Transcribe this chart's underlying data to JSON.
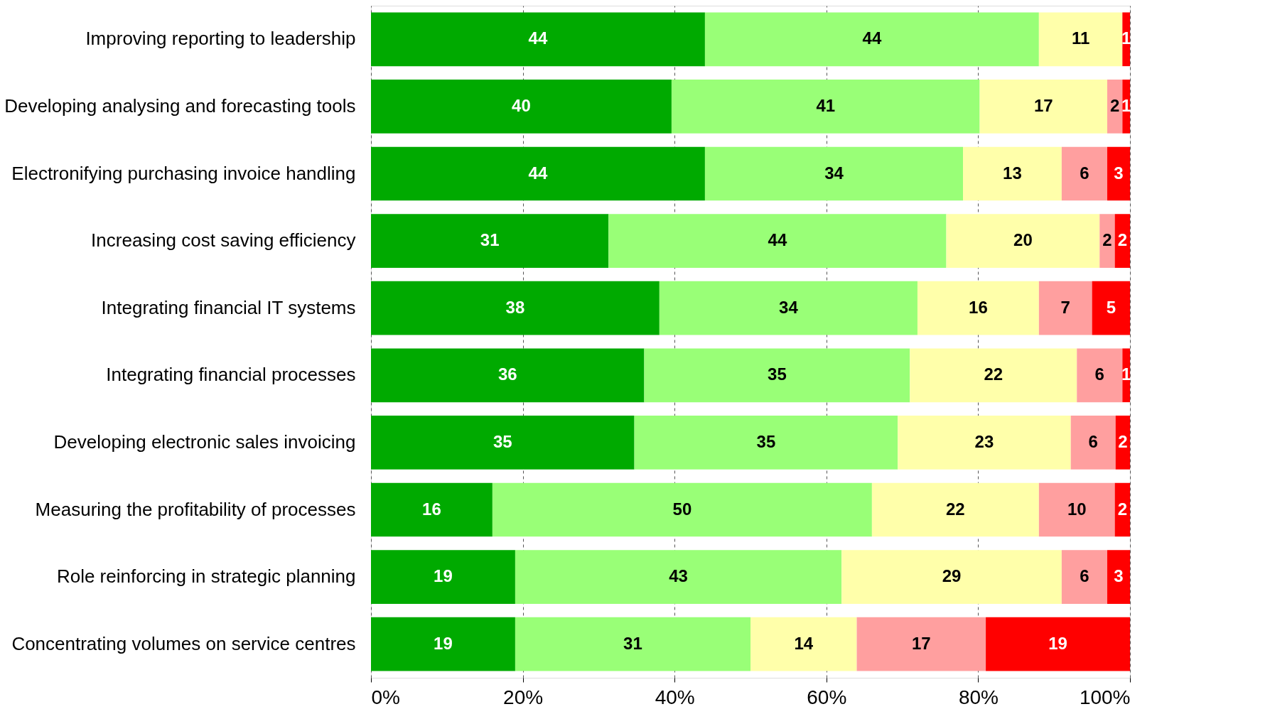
{
  "chart_data": {
    "type": "bar",
    "orientation": "horizontal",
    "stacked": true,
    "categories": [
      "Improving reporting to leadership",
      "Developing analysing and forecasting tools",
      "Electronifying  purchasing invoice handling",
      "Increasing cost saving efficiency",
      "Integrating  financial IT systems",
      "Integrating financial processes",
      "Developing electronic sales invoicing",
      "Measuring the profitability of processes",
      "Role reinforcing in strategic planning",
      "Concentrating volumes on service centres"
    ],
    "series": [
      {
        "color": "#00aa00",
        "values": [
          44,
          39.6,
          44,
          31.3,
          38,
          36,
          34.7,
          16,
          19,
          19
        ],
        "value_labels": [
          "44",
          "40",
          "44",
          "31",
          "38",
          "36",
          "35",
          "16",
          "19",
          "19"
        ]
      },
      {
        "color": "#99ff77",
        "values": [
          44,
          40.6,
          34,
          44.5,
          34,
          35,
          34.7,
          50,
          43,
          31
        ],
        "value_labels": [
          "44",
          "41",
          "34",
          "44",
          "34",
          "35",
          "35",
          "50",
          "43",
          "31"
        ]
      },
      {
        "color": "#ffffaa",
        "values": [
          11,
          16.8,
          13,
          20.2,
          16,
          22,
          22.8,
          22,
          29,
          14
        ],
        "value_labels": [
          "11",
          "17",
          "13",
          "20",
          "16",
          "22",
          "23",
          "22",
          "29",
          "14"
        ]
      },
      {
        "color": "#ff9f9f",
        "values": [
          null,
          2,
          6,
          2,
          7,
          6,
          5.9,
          10,
          6,
          17
        ],
        "value_labels": [
          null,
          "2",
          "6",
          "2",
          "7",
          "6",
          "6",
          "10",
          "6",
          "17"
        ]
      },
      {
        "color": "#ff0000",
        "values": [
          1,
          1,
          3,
          2,
          5,
          1,
          1.9,
          2,
          3,
          19
        ],
        "value_labels": [
          "1",
          "1",
          "3",
          "2",
          "5",
          "1",
          "2",
          "2",
          "3",
          "19"
        ]
      }
    ],
    "xlim": [
      0,
      100
    ],
    "xticks": [
      {
        "value": 0,
        "label": "0%"
      },
      {
        "value": 20,
        "label": "20%"
      },
      {
        "value": 40,
        "label": "40%"
      },
      {
        "value": 60,
        "label": "60%"
      },
      {
        "value": 80,
        "label": "80%"
      },
      {
        "value": 100,
        "label": "100%"
      }
    ],
    "grid": "x"
  }
}
